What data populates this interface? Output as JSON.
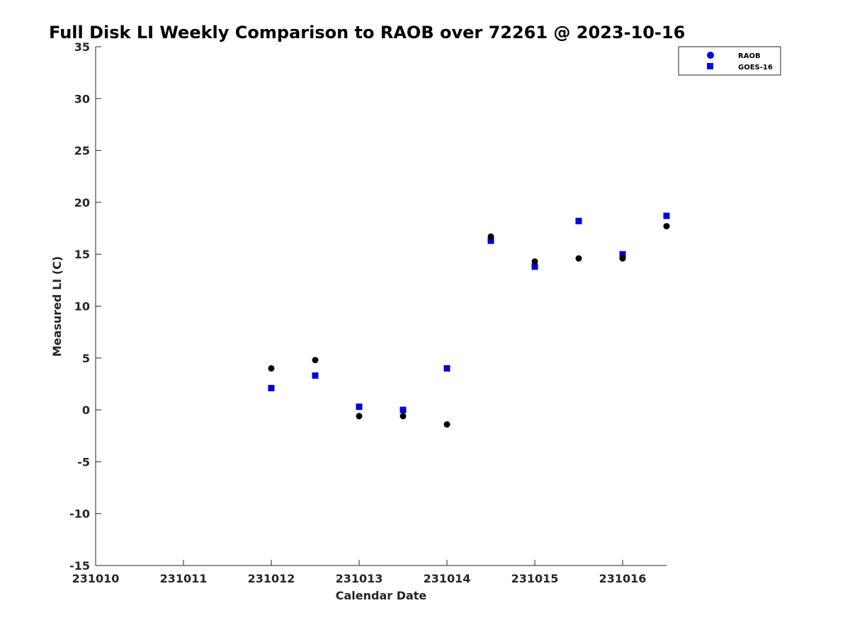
{
  "chart_data": {
    "type": "scatter",
    "title": "Full Disk LI Weekly Comparison to RAOB over 72261 @ 2023-10-16",
    "xlabel": "Calendar Date",
    "ylabel": "Measured LI (C)",
    "xlim": [
      0,
      6.5
    ],
    "ylim": [
      -15,
      35
    ],
    "x_ticks": [
      0,
      1,
      2,
      3,
      4,
      5,
      6
    ],
    "x_tick_labels": [
      "231010",
      "231011",
      "231012",
      "231013",
      "231014",
      "231015",
      "231016"
    ],
    "y_ticks": [
      -15,
      -10,
      -5,
      0,
      5,
      10,
      15,
      20,
      25,
      30,
      35
    ],
    "y_tick_labels": [
      "-15",
      "-10",
      "-5",
      "0",
      "5",
      "10",
      "15",
      "20",
      "25",
      "30",
      "35"
    ],
    "grid": false,
    "legend_position": "top-right",
    "series": [
      {
        "name": "RAOB",
        "marker": "circle",
        "color": "#000000",
        "x": [
          2.0,
          2.5,
          3.0,
          3.5,
          4.0,
          4.5,
          5.0,
          5.5,
          6.0,
          6.5
        ],
        "y": [
          4.0,
          4.8,
          -0.6,
          -0.6,
          -1.4,
          16.7,
          14.3,
          14.6,
          14.6,
          17.7
        ]
      },
      {
        "name": "GOES-16",
        "marker": "square",
        "color": "#0000d8",
        "x": [
          2.0,
          2.5,
          3.0,
          3.5,
          4.0,
          4.5,
          5.0,
          5.5,
          6.0,
          6.5
        ],
        "y": [
          2.1,
          3.3,
          0.3,
          0.0,
          4.0,
          16.3,
          13.8,
          18.2,
          15.0,
          18.7
        ]
      }
    ],
    "legend_marker_color": "#0000ff"
  }
}
